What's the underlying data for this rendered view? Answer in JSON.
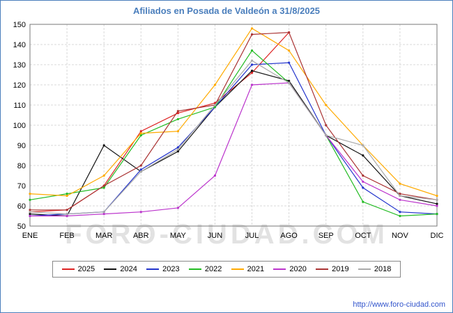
{
  "page": {
    "title": "Afiliados en Posada de Valdeón a 31/8/2025",
    "watermark": "FORO-CIUDAD.COM",
    "footer_url": "http://www.foro-ciudad.com",
    "accent_color": "#4a7ebc"
  },
  "chart_data": {
    "type": "line",
    "title": "Afiliados en Posada de Valdeón a 31/8/2025",
    "categories": [
      "ENE",
      "FEB",
      "MAR",
      "ABR",
      "MAY",
      "JUN",
      "JUL",
      "AGO",
      "SEP",
      "OCT",
      "NOV",
      "DIC"
    ],
    "xlabel": "",
    "ylabel": "",
    "ylim": [
      50,
      150
    ],
    "ytick_step": 10,
    "grid": true,
    "legend_position": "bottom",
    "series": [
      {
        "name": "2025",
        "color": "#dd2222",
        "values": [
          57,
          58,
          70,
          97,
          106,
          111,
          126,
          146
        ]
      },
      {
        "name": "2024",
        "color": "#111111",
        "values": [
          56,
          55,
          90,
          77,
          87,
          109,
          127,
          122,
          95,
          85,
          65,
          61
        ]
      },
      {
        "name": "2023",
        "color": "#2233cc",
        "values": [
          55,
          56,
          57,
          78,
          89,
          109,
          130,
          131,
          95,
          69,
          57,
          56
        ]
      },
      {
        "name": "2022",
        "color": "#22bb22",
        "values": [
          63,
          66,
          69,
          95,
          103,
          109,
          137,
          121,
          95,
          62,
          55,
          56
        ]
      },
      {
        "name": "2021",
        "color": "#ffaa00",
        "values": [
          66,
          65,
          75,
          96,
          97,
          120,
          148,
          137,
          110,
          90,
          71,
          65
        ]
      },
      {
        "name": "2020",
        "color": "#bb33cc",
        "values": [
          55,
          55,
          56,
          57,
          59,
          75,
          120,
          121,
          95,
          72,
          63,
          60
        ]
      },
      {
        "name": "2019",
        "color": "#aa3333",
        "values": [
          58,
          58,
          70,
          80,
          107,
          110,
          145,
          146,
          100,
          75,
          66,
          63
        ]
      },
      {
        "name": "2018",
        "color": "#aaaaaa",
        "values": [
          57,
          56,
          57,
          77,
          88,
          110,
          132,
          121,
          95,
          90,
          65,
          63
        ]
      }
    ]
  }
}
